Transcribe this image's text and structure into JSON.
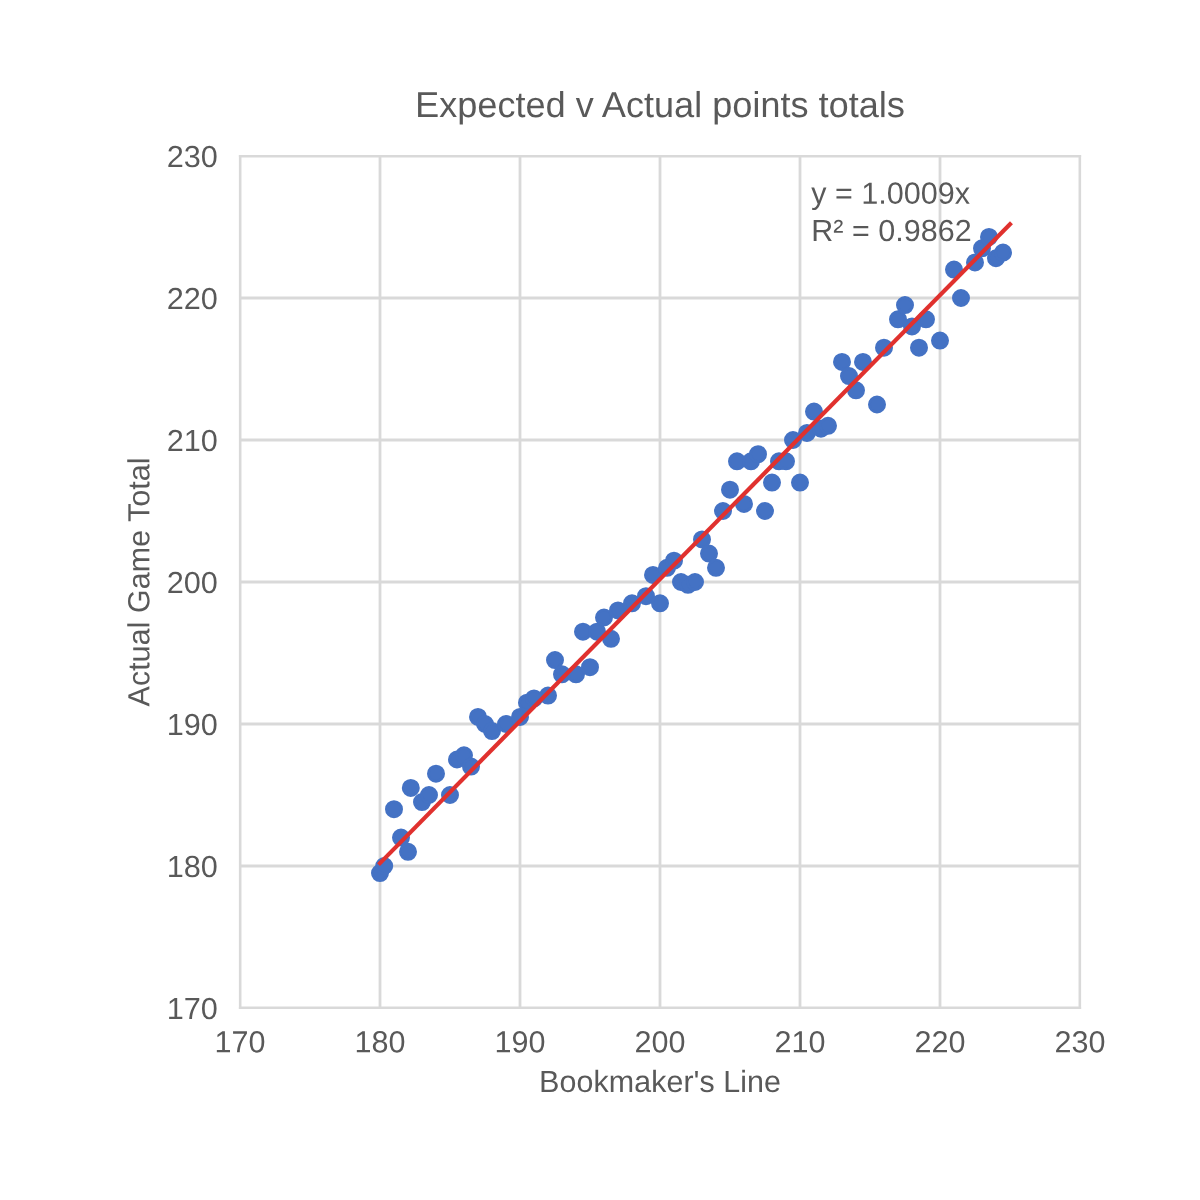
{
  "chart_data": {
    "type": "scatter",
    "title": "Expected v Actual points totals",
    "xlabel": "Bookmaker's Line",
    "ylabel": "Actual Game Total",
    "annotations": [
      "y = 1.0009x",
      "R² = 0.9862"
    ],
    "xlim": [
      170,
      230
    ],
    "xticks": [
      170,
      180,
      190,
      200,
      210,
      220,
      230
    ],
    "ylim": [
      170,
      230
    ],
    "yticks": [
      170,
      180,
      190,
      200,
      210,
      220,
      230
    ],
    "grid": true,
    "series": [
      {
        "marker": "circle",
        "color": "#4472c4",
        "x": [
          180,
          180.3,
          181,
          181.5,
          182,
          182.2,
          183,
          183.5,
          184,
          185,
          185.5,
          186,
          186.5,
          187,
          187.5,
          188,
          189,
          190,
          190.5,
          191,
          192,
          192.5,
          193,
          194,
          194.5,
          195,
          195.5,
          196,
          196.5,
          197,
          198,
          199,
          199.5,
          200,
          200.5,
          201,
          201.5,
          202,
          202.5,
          203,
          203.5,
          204,
          204.5,
          205,
          205.5,
          206,
          206.5,
          207,
          207.5,
          208,
          208.5,
          209,
          209.5,
          210,
          210.5,
          211,
          211.5,
          212,
          213,
          213.5,
          214,
          214.5,
          215.5,
          216,
          217,
          217.5,
          218,
          218.5,
          219,
          220,
          221,
          221.5,
          222.5,
          223,
          223.5,
          224,
          224.5
        ],
        "values": [
          179.5,
          180,
          184,
          182,
          181,
          185.5,
          184.5,
          185,
          186.5,
          185,
          187.5,
          187.8,
          187,
          190.5,
          190,
          189.5,
          190,
          190.5,
          191.5,
          191.8,
          192,
          194.5,
          193.5,
          193.5,
          196.5,
          194,
          196.5,
          197.5,
          196,
          198,
          198.5,
          199,
          200.5,
          198.5,
          201,
          201.5,
          200,
          199.8,
          200,
          203,
          202,
          201,
          205,
          206.5,
          208.5,
          205.5,
          208.5,
          209,
          205,
          207,
          208.5,
          208.5,
          210,
          207,
          210.5,
          212,
          210.8,
          211,
          215.5,
          214.5,
          213.5,
          215.5,
          212.5,
          216.5,
          218.5,
          219.5,
          218,
          216.5,
          218.5,
          217,
          222,
          220,
          222.5,
          223.5,
          224.3,
          222.8,
          223.2
        ]
      },
      {
        "type": "line",
        "color": "#e0312e",
        "marker": "none",
        "x": [
          180,
          225
        ],
        "values": [
          180.2,
          225.2
        ]
      }
    ]
  }
}
